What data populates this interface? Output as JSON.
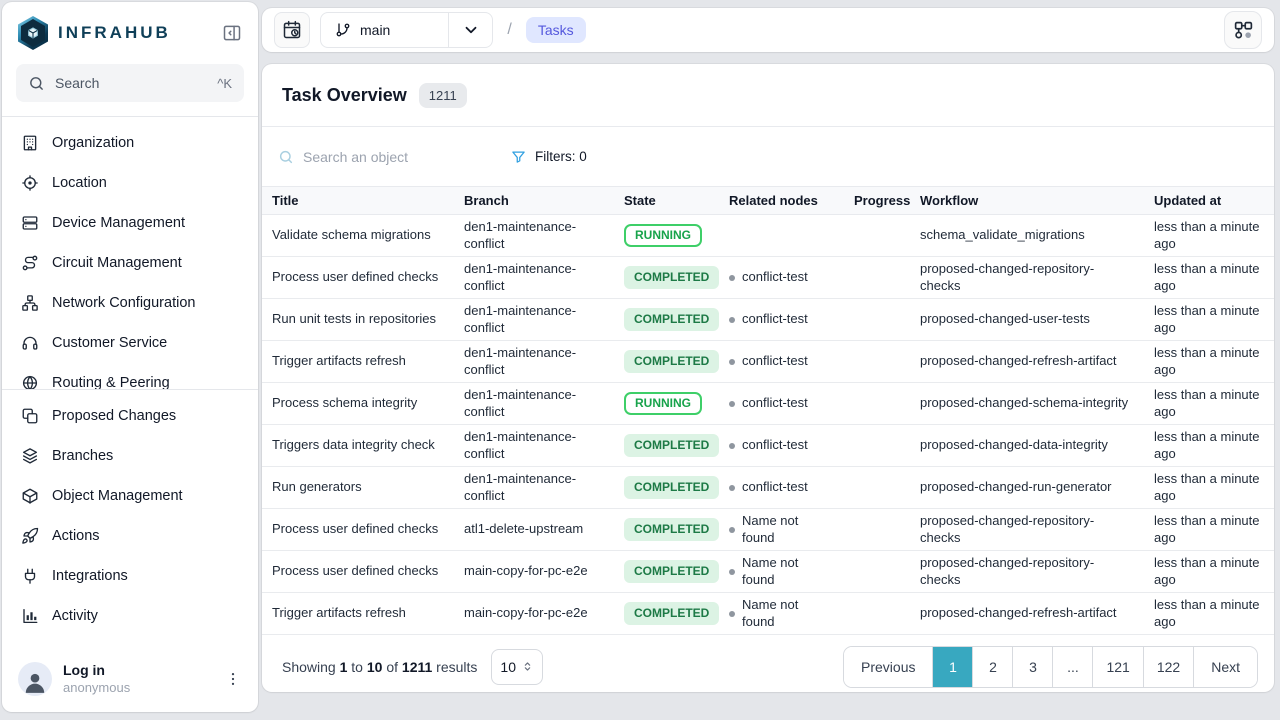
{
  "brand": {
    "name": "INFRAHUB"
  },
  "sidebar": {
    "search": {
      "placeholder": "Search",
      "shortcut": "^K"
    },
    "groups": [
      {
        "items": [
          {
            "label": "Organization",
            "icon": "building-icon"
          },
          {
            "label": "Location",
            "icon": "location-icon"
          },
          {
            "label": "Device Management",
            "icon": "server-icon"
          },
          {
            "label": "Circuit Management",
            "icon": "route-icon"
          },
          {
            "label": "Network Configuration",
            "icon": "network-icon"
          },
          {
            "label": "Customer Service",
            "icon": "headset-icon"
          },
          {
            "label": "Routing & Peering",
            "icon": "globe-icon"
          }
        ]
      },
      {
        "items": [
          {
            "label": "Proposed Changes",
            "icon": "copy-icon"
          },
          {
            "label": "Branches",
            "icon": "layers-icon"
          },
          {
            "label": "Object Management",
            "icon": "cube-icon"
          },
          {
            "label": "Actions",
            "icon": "rocket-icon"
          },
          {
            "label": "Integrations",
            "icon": "plug-icon"
          },
          {
            "label": "Activity",
            "icon": "chart-icon"
          }
        ]
      }
    ],
    "footer": {
      "login_label": "Log in",
      "username": "anonymous"
    }
  },
  "header": {
    "branch": "main",
    "breadcrumb_separator": "/",
    "breadcrumb_current": "Tasks"
  },
  "page": {
    "title": "Task Overview",
    "count_badge": "1211",
    "search_placeholder": "Search an object",
    "filters_label": "Filters: 0"
  },
  "table": {
    "columns": [
      "Title",
      "Branch",
      "State",
      "Related nodes",
      "Progress",
      "Workflow",
      "Updated at"
    ],
    "rows": [
      {
        "title": "Validate schema migrations",
        "branch": "den1-maintenance-conflict",
        "state": "RUNNING",
        "related": "",
        "progress": "",
        "workflow": "schema_validate_migrations",
        "updated": "less than a minute ago"
      },
      {
        "title": "Process user defined checks",
        "branch": "den1-maintenance-conflict",
        "state": "COMPLETED",
        "related": "conflict-test",
        "progress": "",
        "workflow": "proposed-changed-repository-checks",
        "updated": "less than a minute ago"
      },
      {
        "title": "Run unit tests in repositories",
        "branch": "den1-maintenance-conflict",
        "state": "COMPLETED",
        "related": "conflict-test",
        "progress": "",
        "workflow": "proposed-changed-user-tests",
        "updated": "less than a minute ago"
      },
      {
        "title": "Trigger artifacts refresh",
        "branch": "den1-maintenance-conflict",
        "state": "COMPLETED",
        "related": "conflict-test",
        "progress": "",
        "workflow": "proposed-changed-refresh-artifact",
        "updated": "less than a minute ago"
      },
      {
        "title": "Process schema integrity",
        "branch": "den1-maintenance-conflict",
        "state": "RUNNING",
        "related": "conflict-test",
        "progress": "",
        "workflow": "proposed-changed-schema-integrity",
        "updated": "less than a minute ago"
      },
      {
        "title": "Triggers data integrity check",
        "branch": "den1-maintenance-conflict",
        "state": "COMPLETED",
        "related": "conflict-test",
        "progress": "",
        "workflow": "proposed-changed-data-integrity",
        "updated": "less than a minute ago"
      },
      {
        "title": "Run generators",
        "branch": "den1-maintenance-conflict",
        "state": "COMPLETED",
        "related": "conflict-test",
        "progress": "",
        "workflow": "proposed-changed-run-generator",
        "updated": "less than a minute ago"
      },
      {
        "title": "Process user defined checks",
        "branch": "atl1-delete-upstream",
        "state": "COMPLETED",
        "related": "Name not found",
        "progress": "",
        "workflow": "proposed-changed-repository-checks",
        "updated": "less than a minute ago"
      },
      {
        "title": "Process user defined checks",
        "branch": "main-copy-for-pc-e2e",
        "state": "COMPLETED",
        "related": "Name not found",
        "progress": "",
        "workflow": "proposed-changed-repository-checks",
        "updated": "less than a minute ago"
      },
      {
        "title": "Trigger artifacts refresh",
        "branch": "main-copy-for-pc-e2e",
        "state": "COMPLETED",
        "related": "Name not found",
        "progress": "",
        "workflow": "proposed-changed-refresh-artifact",
        "updated": "less than a minute ago"
      }
    ]
  },
  "pagination": {
    "summary": {
      "s1": "Showing",
      "from": "1",
      "s2": "to",
      "to": "10",
      "s3": "of",
      "total": "1211",
      "s4": "results"
    },
    "page_size": "10",
    "pages": [
      "Previous",
      "1",
      "2",
      "3",
      "...",
      "121",
      "122",
      "Next"
    ],
    "active_page": "1"
  },
  "colors": {
    "brand_navy": "#0f3f58",
    "running_green": "#18a34b",
    "completed_bg": "#dcf3e4",
    "completed_text": "#1d7a46",
    "active_page_teal": "#38a8c0",
    "tasks_chip_bg": "#e0e7ff",
    "tasks_chip_text": "#5558dd",
    "filter_blue": "#2f9fe0"
  }
}
